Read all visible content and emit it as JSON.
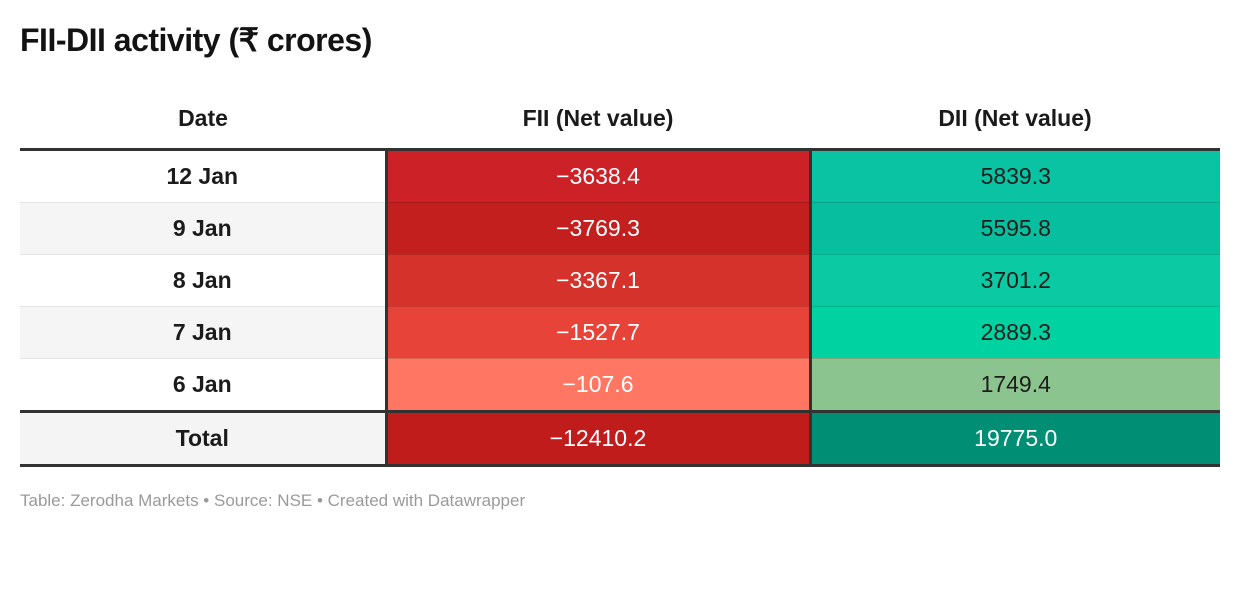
{
  "title": "FII-DII activity (₹ crores)",
  "footer": "Table: Zerodha Markets • Source: NSE • Created with Datawrapper",
  "colors": {
    "border_dark": "#323232",
    "row_stripe": "#f5f5f5",
    "negative_strong": "#c11c1c",
    "positive_strong": "#008e74"
  },
  "table": {
    "headers": [
      "Date",
      "FII (Net value)",
      "DII (Net value)"
    ],
    "rows": [
      {
        "date": "12 Jan",
        "fii": "−3638.4",
        "dii": "5839.3",
        "date_bg": "#ffffff",
        "fii_bg": "#cc2127",
        "fii_color": "#ffffff",
        "dii_bg": "#09c3a3",
        "dii_color": "#1d1d1d"
      },
      {
        "date": "9 Jan",
        "fii": "−3769.3",
        "dii": "5595.8",
        "date_bg": "#f5f5f5",
        "fii_bg": "#c41f1f",
        "fii_color": "#ffffff",
        "dii_bg": "#07bf9f",
        "dii_color": "#1d1d1d"
      },
      {
        "date": "8 Jan",
        "fii": "−3367.1",
        "dii": "3701.2",
        "date_bg": "#ffffff",
        "fii_bg": "#d5322b",
        "fii_color": "#ffffff",
        "dii_bg": "#0bc9a2",
        "dii_color": "#1d1d1d"
      },
      {
        "date": "7 Jan",
        "fii": "−1527.7",
        "dii": "2889.3",
        "date_bg": "#f5f5f5",
        "fii_bg": "#e84338",
        "fii_color": "#ffffff",
        "dii_bg": "#00d3a1",
        "dii_color": "#1d1d1d"
      },
      {
        "date": "6 Jan",
        "fii": "−107.6",
        "dii": "1749.4",
        "date_bg": "#ffffff",
        "fii_bg": "#ff7663",
        "fii_color": "#ffffff",
        "dii_bg": "#8cc48f",
        "dii_color": "#1d1d1d"
      }
    ],
    "total": {
      "label": "Total",
      "fii": "−12410.2",
      "dii": "19775.0",
      "date_bg": "#f4f4f4",
      "fii_bg": "#c11c1c",
      "fii_color": "#ffffff",
      "dii_bg": "#008e74",
      "dii_color": "#ffffff"
    }
  },
  "chart_data": {
    "type": "table",
    "title": "FII-DII activity (₹ crores)",
    "categories": [
      "12 Jan",
      "9 Jan",
      "8 Jan",
      "7 Jan",
      "6 Jan"
    ],
    "series": [
      {
        "name": "FII (Net value)",
        "values": [
          -3638.4,
          -3769.3,
          -3367.1,
          -1527.7,
          -107.6
        ],
        "total": -12410.2
      },
      {
        "name": "DII (Net value)",
        "values": [
          5839.3,
          5595.8,
          3701.2,
          2889.3,
          1749.4
        ],
        "total": 19775.0
      }
    ],
    "layout_hints": {
      "heatmap_cells": true,
      "negative_palette": "red (darker = larger outflow)",
      "positive_palette": "green-teal (darker = larger inflow)"
    },
    "notes": "Table: Zerodha Markets • Source: NSE • Created with Datawrapper"
  }
}
